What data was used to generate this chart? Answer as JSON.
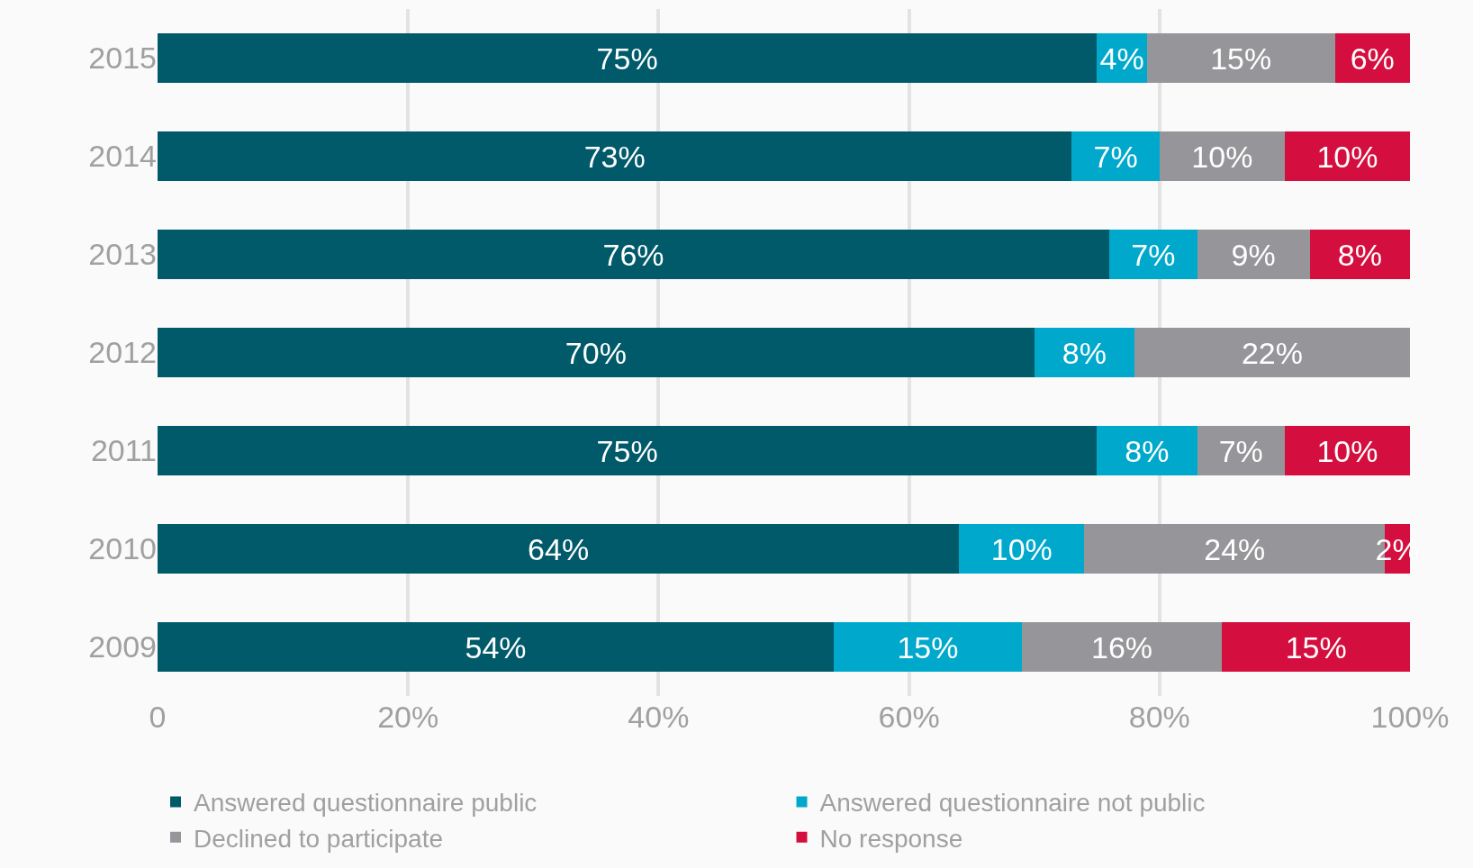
{
  "chart_data": {
    "type": "bar",
    "orientation": "horizontal",
    "stacked": true,
    "grid": "x",
    "legend": "bottom",
    "categories": [
      "2015",
      "2014",
      "2013",
      "2012",
      "2011",
      "2010",
      "2009"
    ],
    "series": [
      {
        "name": "Answered questionnaire public",
        "color": "#005a6a",
        "values": [
          75,
          73,
          76,
          70,
          75,
          64,
          54
        ],
        "value_labels": [
          "75%",
          "73%",
          "76%",
          "70%",
          "75%",
          "64%",
          "54%"
        ]
      },
      {
        "name": "Answered questionnaire not public",
        "color": "#00a9cc",
        "values": [
          4,
          7,
          7,
          8,
          8,
          10,
          15
        ],
        "value_labels": [
          "4%",
          "7%",
          "7%",
          "8%",
          "8%",
          "10%",
          "15%"
        ]
      },
      {
        "name": "Declined to participate",
        "color": "#96969a",
        "values": [
          15,
          10,
          9,
          22,
          7,
          24,
          16
        ],
        "value_labels": [
          "15%",
          "10%",
          "9%",
          "22%",
          "7%",
          "24%",
          "16%"
        ]
      },
      {
        "name": "No response",
        "color": "#d40f3f",
        "values": [
          6,
          10,
          8,
          null,
          10,
          2,
          15
        ],
        "value_labels": [
          "6%",
          "10%",
          "8%",
          null,
          "10%",
          "2%",
          "15%"
        ]
      }
    ],
    "xlim": [
      0,
      100
    ],
    "xticks": [
      0,
      {
        "value": 20,
        "label": "20%"
      },
      {
        "value": 40,
        "label": "40%"
      },
      {
        "value": 60,
        "label": "60%"
      },
      {
        "value": 80,
        "label": "80%"
      },
      {
        "value": 100,
        "label": "100%"
      }
    ]
  }
}
